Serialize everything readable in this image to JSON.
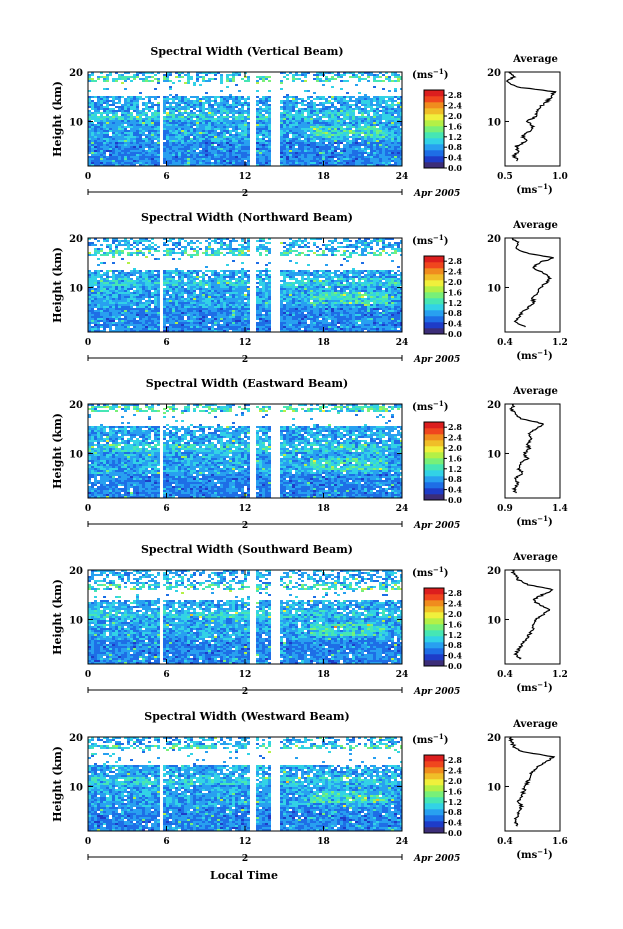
{
  "figure": {
    "xlabel_bottom": "Local Time",
    "date_label": "Apr 2005",
    "day_label": "2",
    "colorbar_unit_base": "(ms",
    "colorbar_unit_exp": "−1",
    "colorbar_unit_close": ")",
    "avg_title": "Average",
    "avg_xlabel_base": "(ms",
    "avg_xlabel_exp": "−1",
    "avg_xlabel_close": ")"
  },
  "colorscale": [
    "#3c2d78",
    "#1e3cc8",
    "#1e6ee6",
    "#28a0f0",
    "#32d2e6",
    "#46e6b4",
    "#78f078",
    "#b4f046",
    "#f0f03c",
    "#f0be28",
    "#f08c1e",
    "#f0461e",
    "#dc1e1e"
  ],
  "chart_data": [
    {
      "type": "heatmap",
      "title": "Spectral Width (Vertical Beam)",
      "xlabel": "Local Time",
      "ylabel": "Height (km)",
      "x_ticks": [
        0,
        6,
        12,
        18,
        24
      ],
      "x_tick_labels": [
        "0",
        "6",
        "12",
        "18",
        "24"
      ],
      "x_minor_ticks": [
        0,
        6,
        12,
        18,
        24
      ],
      "xlim": [
        0,
        24
      ],
      "y_ticks": [
        10,
        20
      ],
      "y_tick_labels": [
        "10",
        "20"
      ],
      "ylim": [
        1,
        20
      ],
      "colorbar": {
        "ticks": [
          0.0,
          0.4,
          0.8,
          1.2,
          1.6,
          2.0,
          2.4,
          2.8
        ],
        "labels": [
          "0.0",
          "0.4",
          "0.8",
          "1.2",
          "1.6",
          "2.0",
          "2.4",
          "2.8"
        ],
        "range": [
          0,
          3.0
        ]
      },
      "data_gaps_hours": [
        [
          5.5,
          5.8
        ],
        [
          12.4,
          12.8
        ],
        [
          14.0,
          14.6
        ]
      ],
      "clear_band_km": [
        15.0,
        18.0
      ],
      "average_profile": {
        "xlabel": "(ms−1)",
        "x_ticks": [
          0.5,
          1.0
        ],
        "x_tick_labels": [
          "0.5",
          "1.0"
        ],
        "xlim": [
          0.5,
          1.0
        ],
        "height_km": [
          2,
          3,
          4,
          5,
          6,
          7,
          8,
          9,
          10,
          11,
          12,
          13,
          14,
          15,
          16,
          17,
          18,
          19,
          20
        ],
        "values": [
          0.62,
          0.58,
          0.62,
          0.6,
          0.7,
          0.66,
          0.72,
          0.75,
          0.7,
          0.78,
          0.8,
          0.82,
          0.88,
          0.92,
          0.95,
          0.6,
          0.52,
          0.58,
          0.55
        ]
      }
    },
    {
      "type": "heatmap",
      "title": "Spectral Width (Northward Beam)",
      "xlabel": "Local Time",
      "ylabel": "Height (km)",
      "x_ticks": [
        0,
        6,
        12,
        18,
        24
      ],
      "x_tick_labels": [
        "0",
        "6",
        "12",
        "18",
        "24"
      ],
      "x_minor_ticks": [
        0,
        6,
        12,
        18,
        24
      ],
      "xlim": [
        0,
        24
      ],
      "y_ticks": [
        10,
        20
      ],
      "y_tick_labels": [
        "10",
        "20"
      ],
      "ylim": [
        1,
        20
      ],
      "colorbar": {
        "ticks": [
          0.0,
          0.4,
          0.8,
          1.2,
          1.6,
          2.0,
          2.4,
          2.8
        ],
        "labels": [
          "0.0",
          "0.4",
          "0.8",
          "1.2",
          "1.6",
          "2.0",
          "2.4",
          "2.8"
        ],
        "range": [
          0,
          3.0
        ]
      },
      "data_gaps_hours": [
        [
          5.5,
          5.8
        ],
        [
          12.4,
          12.8
        ],
        [
          14.0,
          14.6
        ]
      ],
      "clear_band_km": [
        13.5,
        16.5
      ],
      "average_profile": {
        "xlabel": "(ms−1)",
        "x_ticks": [
          0.4,
          1.2
        ],
        "x_tick_labels": [
          "0.4",
          "1.2"
        ],
        "xlim": [
          0.4,
          1.2
        ],
        "height_km": [
          2,
          3,
          4,
          5,
          6,
          7,
          8,
          9,
          10,
          11,
          12,
          13,
          14,
          15,
          16,
          17,
          18,
          19,
          20
        ],
        "values": [
          0.7,
          0.55,
          0.6,
          0.65,
          0.75,
          0.82,
          0.8,
          0.88,
          0.92,
          1.0,
          1.05,
          0.95,
          0.8,
          0.9,
          1.1,
          0.7,
          0.55,
          0.6,
          0.5
        ]
      }
    },
    {
      "type": "heatmap",
      "title": "Spectral Width (Eastward Beam)",
      "xlabel": "Local Time",
      "ylabel": "Height (km)",
      "x_ticks": [
        0,
        6,
        12,
        18,
        24
      ],
      "x_tick_labels": [
        "0",
        "6",
        "12",
        "18",
        "24"
      ],
      "x_minor_ticks": [
        0,
        6,
        12,
        18,
        24
      ],
      "xlim": [
        0,
        24
      ],
      "y_ticks": [
        10,
        20
      ],
      "y_tick_labels": [
        "10",
        "20"
      ],
      "ylim": [
        1,
        20
      ],
      "colorbar": {
        "ticks": [
          0.0,
          0.4,
          0.8,
          1.2,
          1.6,
          2.0,
          2.4,
          2.8
        ],
        "labels": [
          "0.0",
          "0.4",
          "0.8",
          "1.2",
          "1.6",
          "2.0",
          "2.4",
          "2.8"
        ],
        "range": [
          0,
          3.0
        ]
      },
      "data_gaps_hours": [
        [
          5.5,
          5.8
        ],
        [
          12.4,
          12.8
        ],
        [
          14.0,
          14.6
        ]
      ],
      "clear_band_km": [
        15.5,
        18.5
      ],
      "average_profile": {
        "xlabel": "(ms−1)",
        "x_ticks": [
          0.9,
          1.4
        ],
        "x_tick_labels": [
          "0.9",
          "1.4"
        ],
        "xlim": [
          0.9,
          1.4
        ],
        "height_km": [
          2,
          3,
          4,
          5,
          6,
          7,
          8,
          9,
          10,
          11,
          12,
          13,
          14,
          15,
          16,
          17,
          18,
          19,
          20
        ],
        "values": [
          1.0,
          0.98,
          1.02,
          1.0,
          1.06,
          1.02,
          1.04,
          1.1,
          1.08,
          1.12,
          1.1,
          1.15,
          1.12,
          1.18,
          1.25,
          1.05,
          1.0,
          0.96,
          0.98
        ]
      }
    },
    {
      "type": "heatmap",
      "title": "Spectral Width (Southward Beam)",
      "xlabel": "Local Time",
      "ylabel": "Height (km)",
      "x_ticks": [
        0,
        6,
        12,
        18,
        24
      ],
      "x_tick_labels": [
        "0",
        "6",
        "12",
        "18",
        "24"
      ],
      "x_minor_ticks": [
        0,
        6,
        12,
        18,
        24
      ],
      "xlim": [
        0,
        24
      ],
      "y_ticks": [
        10,
        20
      ],
      "y_tick_labels": [
        "10",
        "20"
      ],
      "ylim": [
        1,
        20
      ],
      "colorbar": {
        "ticks": [
          0.0,
          0.4,
          0.8,
          1.2,
          1.6,
          2.0,
          2.4,
          2.8
        ],
        "labels": [
          "0.0",
          "0.4",
          "0.8",
          "1.2",
          "1.6",
          "2.0",
          "2.4",
          "2.8"
        ],
        "range": [
          0,
          3.0
        ]
      },
      "data_gaps_hours": [
        [
          5.5,
          5.8
        ],
        [
          12.4,
          12.8
        ],
        [
          14.0,
          14.6
        ]
      ],
      "clear_band_km": [
        14.0,
        16.0
      ],
      "average_profile": {
        "xlabel": "(ms−1)",
        "x_ticks": [
          0.4,
          1.2
        ],
        "x_tick_labels": [
          "0.4",
          "1.2"
        ],
        "xlim": [
          0.4,
          1.2
        ],
        "height_km": [
          2,
          3,
          4,
          5,
          6,
          7,
          8,
          9,
          10,
          11,
          12,
          13,
          14,
          15,
          16,
          17,
          18,
          19,
          20
        ],
        "values": [
          0.62,
          0.55,
          0.6,
          0.65,
          0.7,
          0.76,
          0.8,
          0.82,
          0.86,
          0.95,
          1.05,
          0.9,
          0.8,
          0.95,
          1.1,
          0.75,
          0.6,
          0.55,
          0.5
        ]
      }
    },
    {
      "type": "heatmap",
      "title": "Spectral Width (Westward Beam)",
      "xlabel": "Local Time",
      "ylabel": "Height (km)",
      "x_ticks": [
        0,
        6,
        12,
        18,
        24
      ],
      "x_tick_labels": [
        "0",
        "6",
        "12",
        "18",
        "24"
      ],
      "x_minor_ticks": [
        0,
        6,
        12,
        18,
        24
      ],
      "xlim": [
        0,
        24
      ],
      "y_ticks": [
        10,
        20
      ],
      "y_tick_labels": [
        "10",
        "20"
      ],
      "ylim": [
        1,
        20
      ],
      "colorbar": {
        "ticks": [
          0.0,
          0.4,
          0.8,
          1.2,
          1.6,
          2.0,
          2.4,
          2.8
        ],
        "labels": [
          "0.0",
          "0.4",
          "0.8",
          "1.2",
          "1.6",
          "2.0",
          "2.4",
          "2.8"
        ],
        "range": [
          0,
          3.0
        ]
      },
      "data_gaps_hours": [
        [
          5.5,
          5.8
        ],
        [
          12.4,
          12.8
        ],
        [
          14.0,
          14.6
        ]
      ],
      "clear_band_km": [
        14.5,
        17.5
      ],
      "average_profile": {
        "xlabel": "(ms−1)",
        "x_ticks": [
          0.4,
          1.6
        ],
        "x_tick_labels": [
          "0.4",
          "1.6"
        ],
        "xlim": [
          0.4,
          1.6
        ],
        "height_km": [
          2,
          3,
          4,
          5,
          6,
          7,
          8,
          9,
          10,
          11,
          12,
          13,
          14,
          15,
          16,
          17,
          18,
          19,
          20
        ],
        "values": [
          0.7,
          0.6,
          0.68,
          0.72,
          0.75,
          0.7,
          0.78,
          0.8,
          0.85,
          0.9,
          0.95,
          1.0,
          1.1,
          1.3,
          1.45,
          0.8,
          0.6,
          0.55,
          0.5
        ]
      }
    }
  ]
}
